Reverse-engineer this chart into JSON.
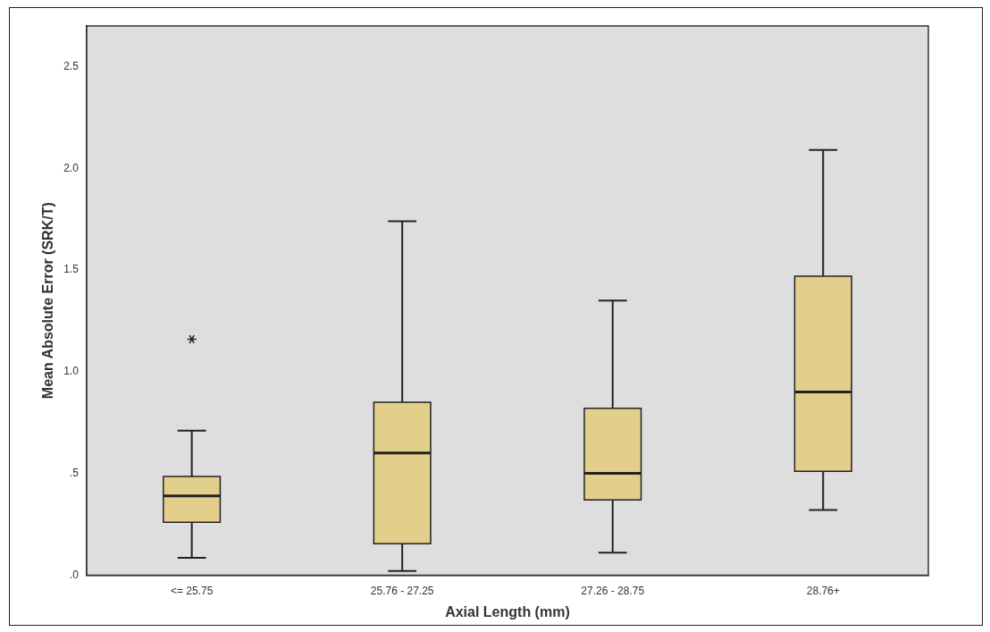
{
  "chart_data": {
    "type": "box",
    "xlabel": "Axial Length (mm)",
    "ylabel": "Mean Absolute Error (SRK/T)",
    "categories": [
      "<= 25.75",
      "25.76 - 27.25",
      "27.26 - 28.75",
      "28.76+"
    ],
    "boxes": [
      {
        "low": 0.085,
        "q1": 0.26,
        "median": 0.39,
        "q3": 0.485,
        "high": 0.71,
        "outliers": [
          1.16
        ]
      },
      {
        "low": 0.02,
        "q1": 0.155,
        "median": 0.6,
        "q3": 0.85,
        "high": 1.74
      },
      {
        "low": 0.11,
        "q1": 0.37,
        "median": 0.5,
        "q3": 0.82,
        "high": 1.35
      },
      {
        "low": 0.32,
        "q1": 0.51,
        "median": 0.9,
        "q3": 1.47,
        "high": 2.09
      }
    ],
    "color": "#e3cf8c",
    "ylim": [
      0,
      2.7
    ],
    "yticks": [
      {
        "value": 0,
        "label": ".0"
      },
      {
        "value": 0.5,
        "label": ".5"
      },
      {
        "value": 1,
        "label": "1.0"
      },
      {
        "value": 1.5,
        "label": "1.5"
      },
      {
        "value": 2,
        "label": "2.0"
      },
      {
        "value": 2.5,
        "label": "2.5"
      }
    ],
    "grid": false,
    "legend": false
  }
}
